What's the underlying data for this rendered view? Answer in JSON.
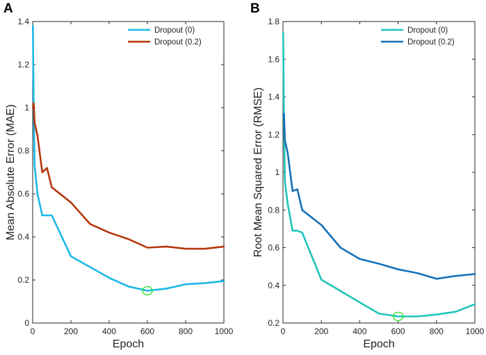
{
  "chart_data": [
    {
      "panel_label": "A",
      "type": "line",
      "xlabel": "Epoch",
      "ylabel": "Mean Absolute Error (MAE)",
      "xlim": [
        0,
        1000
      ],
      "ylim": [
        0,
        1.4
      ],
      "xticks": [
        0,
        200,
        400,
        600,
        800,
        1000
      ],
      "yticks": [
        0,
        0.2,
        0.4,
        0.6,
        0.8,
        1,
        1.2,
        1.4
      ],
      "ytick_labels": [
        "0",
        "0.2",
        "0.4",
        "0.6",
        "0.8",
        "1",
        "1.2",
        "1.4"
      ],
      "legend_position": "top-right",
      "series": [
        {
          "name": "Dropout (0)",
          "color": "#1ab8e8",
          "x": [
            1,
            5,
            10,
            25,
            50,
            75,
            100,
            200,
            300,
            400,
            500,
            550,
            600,
            700,
            800,
            900,
            1000
          ],
          "y": [
            1.38,
            1.02,
            0.73,
            0.6,
            0.5,
            0.5,
            0.5,
            0.31,
            0.26,
            0.21,
            0.17,
            0.16,
            0.15,
            0.16,
            0.18,
            0.185,
            0.195
          ]
        },
        {
          "name": "Dropout (0.2)",
          "color": "#b5360a",
          "x": [
            1,
            5,
            10,
            25,
            50,
            75,
            100,
            200,
            300,
            400,
            500,
            600,
            700,
            800,
            900,
            1000
          ],
          "y": [
            1.0,
            1.02,
            0.93,
            0.87,
            0.7,
            0.72,
            0.63,
            0.56,
            0.46,
            0.42,
            0.39,
            0.35,
            0.355,
            0.345,
            0.345,
            0.355
          ]
        }
      ],
      "marker": {
        "x": 600,
        "y": 0.15,
        "color": "#22dd22"
      }
    },
    {
      "panel_label": "B",
      "type": "line",
      "xlabel": "Epoch",
      "ylabel": "Root Mean Squared Error (RMSE)",
      "xlim": [
        0,
        1000
      ],
      "ylim": [
        0.2,
        1.8
      ],
      "xticks": [
        0,
        200,
        400,
        600,
        800,
        1000
      ],
      "yticks": [
        0.2,
        0.4,
        0.6,
        0.8,
        1,
        1.2,
        1.4,
        1.6,
        1.8
      ],
      "ytick_labels": [
        "0.2",
        "0.4",
        "0.6",
        "0.8",
        "1",
        "1.2",
        "1.4",
        "1.6",
        "1.8"
      ],
      "legend_position": "top-right",
      "series": [
        {
          "name": "Dropout (0)",
          "color": "#1fc4b8",
          "x": [
            1,
            5,
            10,
            25,
            50,
            75,
            100,
            200,
            300,
            400,
            500,
            600,
            700,
            800,
            900,
            1000
          ],
          "y": [
            1.74,
            1.3,
            0.95,
            0.83,
            0.69,
            0.69,
            0.68,
            0.43,
            0.37,
            0.31,
            0.25,
            0.235,
            0.235,
            0.245,
            0.26,
            0.3
          ]
        },
        {
          "name": "Dropout (0.2)",
          "color": "#1570b8",
          "x": [
            1,
            5,
            10,
            25,
            50,
            75,
            100,
            200,
            300,
            400,
            500,
            600,
            700,
            800,
            900,
            1000
          ],
          "y": [
            1.3,
            1.31,
            1.17,
            1.1,
            0.9,
            0.91,
            0.8,
            0.72,
            0.6,
            0.54,
            0.515,
            0.485,
            0.465,
            0.435,
            0.45,
            0.46
          ]
        }
      ],
      "marker": {
        "x": 600,
        "y": 0.235,
        "color": "#22dd22"
      }
    }
  ]
}
